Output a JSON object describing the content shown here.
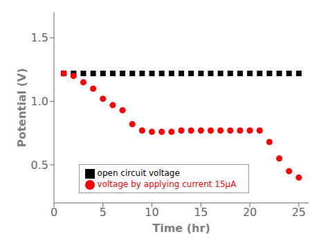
{
  "chart_data": {
    "type": "scatter",
    "x": [
      1,
      2,
      3,
      4,
      5,
      6,
      7,
      8,
      9,
      10,
      11,
      12,
      13,
      14,
      15,
      16,
      17,
      18,
      19,
      20,
      21,
      22,
      23,
      24,
      25
    ],
    "series": [
      {
        "name": "open circuit voltage",
        "color": "#000000",
        "marker": "square",
        "values": [
          1.22,
          1.22,
          1.22,
          1.22,
          1.22,
          1.22,
          1.22,
          1.22,
          1.22,
          1.22,
          1.22,
          1.22,
          1.22,
          1.22,
          1.22,
          1.22,
          1.22,
          1.22,
          1.22,
          1.22,
          1.22,
          1.22,
          1.22,
          1.22,
          1.22
        ]
      },
      {
        "name": "voltage by applying current 15μA",
        "color": "#ff0000",
        "marker": "circle",
        "values": [
          1.22,
          1.2,
          1.15,
          1.1,
          1.02,
          0.97,
          0.93,
          0.82,
          0.77,
          0.76,
          0.76,
          0.76,
          0.77,
          0.77,
          0.77,
          0.77,
          0.77,
          0.77,
          0.77,
          0.77,
          0.77,
          0.68,
          0.55,
          0.45,
          0.4
        ]
      }
    ],
    "xlabel": "Time (hr)",
    "ylabel": "Potential (V)",
    "xlim": [
      0,
      26
    ],
    "ylim": [
      0.2,
      1.7
    ],
    "xticks": [
      0,
      5,
      10,
      15,
      20,
      25
    ],
    "yticks": [
      0.5,
      {
        "value": 1.0,
        "label": "1.0"
      },
      1.5
    ],
    "legend": "lower center"
  }
}
